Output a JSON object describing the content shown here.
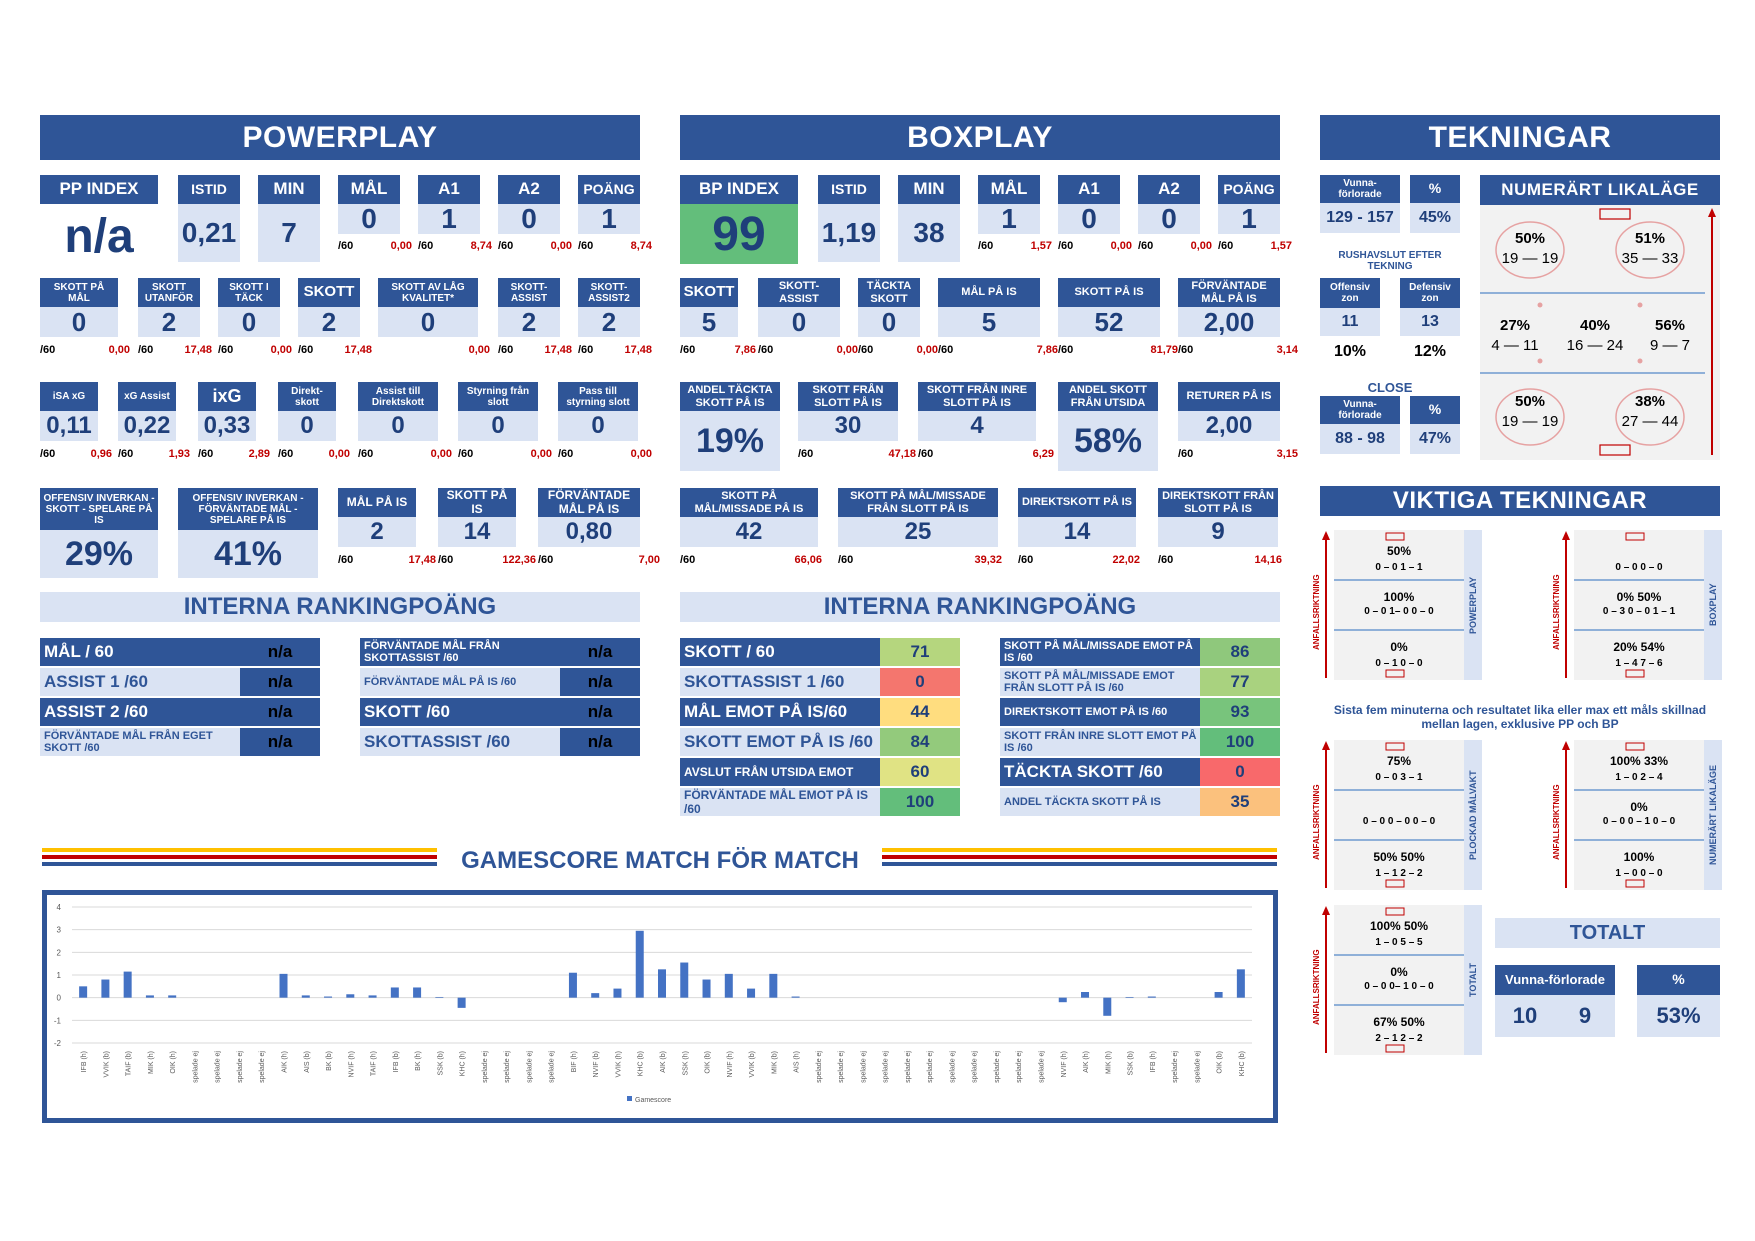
{
  "powerplay": {
    "title": "POWERPLAY",
    "pp_index": {
      "label": "PP INDEX",
      "value": "n/a"
    },
    "top": [
      {
        "label": "ISTID",
        "value": "0,21"
      },
      {
        "label": "MIN",
        "value": "7"
      },
      {
        "label": "MÅL",
        "value": "0",
        "per": "/60",
        "rate": "0,00"
      },
      {
        "label": "A1",
        "value": "1",
        "per": "/60",
        "rate": "8,74"
      },
      {
        "label": "A2",
        "value": "0",
        "per": "/60",
        "rate": "0,00"
      },
      {
        "label": "POÄNG",
        "value": "1",
        "per": "/60",
        "rate": "8,74"
      }
    ],
    "row2": [
      {
        "label": "SKOTT PÅ MÅL",
        "value": "0",
        "per": "/60",
        "rate": "0,00"
      },
      {
        "label": "SKOTT UTANFÖR",
        "value": "2",
        "per": "/60",
        "rate": "17,48"
      },
      {
        "label": "SKOTT I TÄCK",
        "value": "0",
        "per": "/60",
        "rate": "0,00"
      },
      {
        "label": "SKOTT",
        "value": "2",
        "per": "/60",
        "rate": "17,48"
      },
      {
        "label": "SKOTT AV LÅG KVALITET*",
        "value": "0",
        "per": "",
        "rate": "0,00"
      },
      {
        "label": "SKOTT-ASSIST",
        "value": "2",
        "per": "/60",
        "rate": "17,48"
      },
      {
        "label": "SKOTT-ASSIST2",
        "value": "2",
        "per": "/60",
        "rate": "17,48"
      }
    ],
    "row3": [
      {
        "label": "iSA xG",
        "value": "0,11",
        "per": "/60",
        "rate": "0,96"
      },
      {
        "label": "xG Assist",
        "value": "0,22",
        "per": "/60",
        "rate": "1,93"
      },
      {
        "label": "ixG",
        "value": "0,33",
        "per": "/60",
        "rate": "2,89"
      },
      {
        "label": "Direkt-skott",
        "value": "0",
        "per": "/60",
        "rate": "0,00"
      },
      {
        "label": "Assist till Direktskott",
        "value": "0",
        "per": "/60",
        "rate": "0,00"
      },
      {
        "label": "Styrning från slott",
        "value": "0",
        "per": "/60",
        "rate": "0,00"
      },
      {
        "label": "Pass till styrning slott",
        "value": "0",
        "per": "/60",
        "rate": "0,00"
      }
    ],
    "row4_big": [
      {
        "label": "OFFENSIV INVERKAN - SKOTT - SPELARE PÅ IS",
        "value": "29%"
      },
      {
        "label": "OFFENSIV INVERKAN - FÖRVÄNTADE MÅL - SPELARE PÅ IS",
        "value": "41%"
      }
    ],
    "row4": [
      {
        "label": "MÅL PÅ IS",
        "value": "2",
        "per": "/60",
        "rate": "17,48"
      },
      {
        "label": "SKOTT PÅ IS",
        "value": "14",
        "per": "/60",
        "rate": "122,36"
      },
      {
        "label": "FÖRVÄNTADE MÅL PÅ IS",
        "value": "0,80",
        "per": "/60",
        "rate": "7,00"
      }
    ]
  },
  "boxplay": {
    "title": "BOXPLAY",
    "bp_index": {
      "label": "BP INDEX",
      "value": "99"
    },
    "top": [
      {
        "label": "ISTID",
        "value": "1,19"
      },
      {
        "label": "MIN",
        "value": "38"
      },
      {
        "label": "MÅL",
        "value": "1",
        "per": "/60",
        "rate": "1,57"
      },
      {
        "label": "A1",
        "value": "0",
        "per": "/60",
        "rate": "0,00"
      },
      {
        "label": "A2",
        "value": "0",
        "per": "/60",
        "rate": "0,00"
      },
      {
        "label": "POÄNG",
        "value": "1",
        "per": "/60",
        "rate": "1,57"
      }
    ],
    "row2": [
      {
        "label": "SKOTT",
        "value": "5",
        "per": "/60",
        "rate": "7,86"
      },
      {
        "label": "SKOTT-ASSIST",
        "value": "0",
        "per": "/60",
        "rate": "0,00"
      },
      {
        "label": "TÄCKTA SKOTT",
        "value": "0",
        "per": "/60",
        "rate": "0,00"
      },
      {
        "label": "MÅL PÅ IS",
        "value": "5",
        "per": "/60",
        "rate": "7,86"
      },
      {
        "label": "SKOTT PÅ IS",
        "value": "52",
        "per": "/60",
        "rate": "81,79"
      },
      {
        "label": "FÖRVÄNTADE MÅL PÅ IS",
        "value": "2,00",
        "per": "/60",
        "rate": "3,14"
      }
    ],
    "row3": [
      {
        "label": "ANDEL TÄCKTA SKOTT PÅ IS",
        "value": "19%",
        "per": "",
        "rate": ""
      },
      {
        "label": "SKOTT FRÅN SLOTT PÅ IS",
        "value": "30",
        "per": "/60",
        "rate": "47,18"
      },
      {
        "label": "SKOTT FRÅN INRE SLOTT PÅ IS",
        "value": "4",
        "per": "/60",
        "rate": "6,29"
      },
      {
        "label": "ANDEL SKOTT FRÅN UTSIDA",
        "value": "58%",
        "per": "",
        "rate": ""
      },
      {
        "label": "RETURER PÅ IS",
        "value": "2,00",
        "per": "/60",
        "rate": "3,15"
      }
    ],
    "row4": [
      {
        "label": "SKOTT PÅ MÅL/MISSADE PÅ IS",
        "value": "42",
        "per": "/60",
        "rate": "66,06"
      },
      {
        "label": "SKOTT PÅ MÅL/MISSADE FRÅN SLOTT PÅ IS",
        "value": "25",
        "per": "/60",
        "rate": "39,32"
      },
      {
        "label": "DIREKTSKOTT PÅ IS",
        "value": "14",
        "per": "/60",
        "rate": "22,02"
      },
      {
        "label": "DIREKTSKOTT FRÅN SLOTT PÅ IS",
        "value": "9",
        "per": "/60",
        "rate": "14,16"
      }
    ]
  },
  "ranking_pp": {
    "title": "INTERNA RANKINGPOÄNG",
    "left": [
      {
        "label": "MÅL / 60",
        "value": "n/a"
      },
      {
        "label": "ASSIST 1 /60",
        "value": "n/a"
      },
      {
        "label": "ASSIST 2 /60",
        "value": "n/a"
      },
      {
        "label": "FÖRVÄNTADE MÅL FRÅN EGET SKOTT /60",
        "value": "n/a"
      }
    ],
    "right": [
      {
        "label": "FÖRVÄNTADE MÅL FRÅN SKOTTASSIST /60",
        "value": "n/a"
      },
      {
        "label": "FÖRVÄNTADE MÅL PÅ IS /60",
        "value": "n/a"
      },
      {
        "label": "SKOTT /60",
        "value": "n/a"
      },
      {
        "label": "SKOTTASSIST /60",
        "value": "n/a"
      }
    ]
  },
  "ranking_bp": {
    "title": "INTERNA RANKINGPOÄNG",
    "left": [
      {
        "label": "SKOTT / 60",
        "value": "71",
        "color": "#b5d67e"
      },
      {
        "label": "SKOTTASSIST 1 /60",
        "value": "0",
        "color": "#f4766e"
      },
      {
        "label": "MÅL EMOT PÅ IS/60",
        "value": "44",
        "color": "#ffdd7f"
      },
      {
        "label": "SKOTT EMOT PÅ IS /60",
        "value": "84",
        "color": "#93ca7c"
      },
      {
        "label": "AVSLUT FRÅN UTSIDA EMOT",
        "value": "60",
        "color": "#e0e384"
      },
      {
        "label": "FÖRVÄNTADE MÅL EMOT PÅ IS /60",
        "value": "100",
        "color": "#63be7b"
      }
    ],
    "right": [
      {
        "label": "SKOTT PÅ MÅL/MISSADE EMOT PÅ IS /60",
        "value": "86",
        "color": "#8fc87c"
      },
      {
        "label": "SKOTT PÅ MÅL/MISSADE EMOT FRÅN SLOTT PÅ IS /60",
        "value": "77",
        "color": "#a9d27f"
      },
      {
        "label": "DIREKTSKOTT EMOT PÅ IS /60",
        "value": "93",
        "color": "#78c47c"
      },
      {
        "label": "SKOTT FRÅN INRE SLOTT EMOT PÅ IS /60",
        "value": "100",
        "color": "#63be7b"
      },
      {
        "label": "TÄCKTA SKOTT /60",
        "value": "0",
        "color": "#f8696b"
      },
      {
        "label": "ANDEL TÄCKTA SKOTT PÅ IS",
        "value": "35",
        "color": "#fbc17d"
      }
    ]
  },
  "tekningar": {
    "title": "TEKNINGAR",
    "wl_label": "Vunna-förlorade",
    "pct_label": "%",
    "wl_value": "129 - 157",
    "pct_value": "45%",
    "rush_label": "RUSHAVSLUT EFTER TEKNING",
    "off_label": "Offensiv zon",
    "def_label": "Defensiv zon",
    "off_value": "11",
    "def_value": "13",
    "off_pct": "10%",
    "def_pct": "12%",
    "close_label": "CLOSE",
    "close_wl_label": "Vunna-förlorade",
    "close_pct_label": "%",
    "close_wl": "88 - 98",
    "close_pct": "47%",
    "even_title": "NUMERÄRT LIKALÄGE",
    "even": [
      {
        "pct": "50%",
        "wl": "19 — 19"
      },
      {
        "pct": "51%",
        "wl": "35 — 33"
      },
      {
        "pct": "27%",
        "wl": "4 — 11"
      },
      {
        "pct": "40%",
        "wl": "16 — 24"
      },
      {
        "pct": "56%",
        "wl": "9 — 7"
      },
      {
        "pct": "50%",
        "wl": "19 — 19"
      },
      {
        "pct": "38%",
        "wl": "27 — 44"
      }
    ]
  },
  "viktiga": {
    "title": "VIKTIGA TEKNINGAR",
    "note": "Sista fem minuterna och resultatet lika eller max ett måls skillnad mellan lagen, exklusive PP och BP",
    "arrow_label": "ANFALLSRIKTNING",
    "rinks": [
      {
        "side": "POWERPLAY",
        "lines": [
          "50%",
          "0 – 0   1 – 1",
          "100%",
          "0 – 0   1– 0   0 – 0",
          "0%",
          "0 – 1   0 – 0"
        ]
      },
      {
        "side": "BOXPLAY",
        "lines": [
          "",
          "0 – 0   0 – 0",
          "0%   50%",
          "0 – 3   0 – 0   1 – 1",
          "20%   54%",
          "1 – 4   7 – 6"
        ]
      },
      {
        "side": "PLOCKAD MÅLVAKT",
        "lines": [
          "75%",
          "0 – 0   3 – 1",
          "",
          "0 – 0   0 – 0   0 – 0",
          "50%   50%",
          "1 – 1   2 – 2"
        ]
      },
      {
        "side": "NUMERÄRT LIKALÄGE",
        "lines": [
          "100%   33%",
          "1 – 0   2 – 4",
          "0%",
          "0 – 0   0 – 1   0 – 0",
          "100%",
          "1 – 0   0 – 0"
        ]
      },
      {
        "side": "TOTALT",
        "lines": [
          "100%   50%",
          "1 –   0   5 –   5",
          "0%",
          "0 – 0   0– 1   0 – 0",
          "67%   50%",
          "2 – 1   2 – 2"
        ]
      }
    ],
    "totalt_title": "TOTALT",
    "totalt_wl_label": "Vunna-förlorade",
    "totalt_pct_label": "%",
    "totalt_w": "10",
    "totalt_l": "9",
    "totalt_pct": "53%"
  },
  "gamescore_title": "GAMESCORE MATCH FÖR MATCH",
  "chart_data": {
    "type": "bar",
    "legend": "Gamescore",
    "ylim": [
      -2,
      4
    ],
    "yticks": [
      "4",
      "3",
      "2",
      "1",
      "0",
      "-1",
      "-2"
    ],
    "categories": [
      "IFB (h)",
      "VVIK (b)",
      "TAIF (b)",
      "MIK (h)",
      "OIK (h)",
      "spelade ej",
      "spelade ej",
      "spelade ej",
      "spelade ej",
      "AIK (h)",
      "AIS (b)",
      "BK (b)",
      "NVIF (h)",
      "TAIF (h)",
      "IFB (b)",
      "BK (h)",
      "SSK (b)",
      "KHC (h)",
      "spelade ej",
      "spelade ej",
      "spelade ej",
      "spelade ej",
      "BIF (h)",
      "NVIF (b)",
      "VVIK (h)",
      "KHC (b)",
      "AIK (b)",
      "SSK (h)",
      "OIK (b)",
      "NVIF (h)",
      "VVIK (b)",
      "MIK (b)",
      "AIS (h)",
      "spelade ej",
      "spelade ej",
      "spelade ej",
      "spelade ej",
      "spelade ej",
      "spelade ej",
      "spelade ej",
      "spelade ej",
      "spelade ej",
      "spelade ej",
      "spelade ej",
      "NVIF (h)",
      "AIK (h)",
      "MIK (h)",
      "SSK (b)",
      "IFB (h)",
      "spelade ej",
      "spelade ej",
      "OIK (b)",
      "KHC (b)"
    ],
    "values": [
      0.5,
      0.8,
      1.15,
      0.1,
      0.1,
      0,
      0,
      0,
      0,
      1.05,
      0.1,
      0.05,
      0.15,
      0.1,
      0.45,
      0.45,
      0.03,
      -0.45,
      0,
      0,
      0,
      0,
      1.1,
      0.2,
      0.4,
      2.95,
      1.25,
      1.55,
      0.8,
      1.05,
      0.4,
      1.05,
      0.05,
      0,
      0,
      0,
      0,
      0,
      0,
      0,
      0,
      0,
      0,
      0,
      -0.2,
      0.25,
      -0.8,
      0.03,
      0.05,
      0,
      0,
      0.25,
      1.25
    ]
  }
}
